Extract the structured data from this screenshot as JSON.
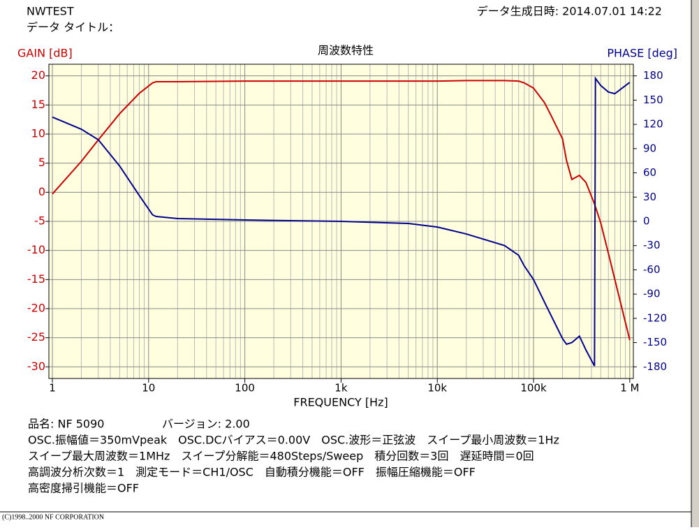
{
  "header": {
    "name": "NWTEST",
    "data_title": "データ タイトル：",
    "date": "データ生成日時: 2014.07.01 14:22"
  },
  "chart_data": {
    "type": "line",
    "title": "周波数特性",
    "x_label": "FREQUENCY [Hz]",
    "y_label": "GAIN [dB]",
    "y2_label": "PHASE [deg]",
    "x_log": true,
    "grid": true,
    "background": "#ffffe0",
    "xlim": [
      0.92,
      1090000
    ],
    "xticks": [
      1,
      10,
      100,
      {
        "value": 1000,
        "label": "1k"
      },
      {
        "value": 10000,
        "label": "10k"
      },
      {
        "value": 100000,
        "label": "100k"
      },
      {
        "value": 1000000,
        "label": "1 M"
      }
    ],
    "ylim": [
      -32,
      22
    ],
    "yticks": [
      20,
      15,
      10,
      5,
      0,
      -5,
      -10,
      -15,
      -20,
      -25,
      -30
    ],
    "y2lim": [
      -194.4,
      194.4
    ],
    "y2ticks": [
      180,
      150,
      120,
      90,
      60,
      30,
      0,
      -30,
      -60,
      -90,
      -120,
      -150,
      -180
    ],
    "x": [
      1,
      2,
      3,
      5,
      8,
      11,
      12,
      20,
      100,
      1000,
      5000,
      10000,
      20000,
      50000,
      70000,
      80000,
      100000,
      130000,
      150000,
      200000,
      220000,
      250000,
      300000,
      350000,
      430000,
      440000,
      500000,
      600000,
      700000,
      1000000
    ],
    "series": [
      {
        "name": "GAIN",
        "color": "#cc0000",
        "axis": "y",
        "values": [
          -0.3,
          5.3,
          9,
          13.5,
          17,
          18.8,
          19,
          19,
          19.1,
          19.1,
          19.1,
          19.1,
          19.2,
          19.2,
          19.1,
          18.8,
          17.9,
          15.4,
          13.4,
          9.2,
          5.5,
          2.2,
          2.9,
          1.7,
          -2,
          -2.5,
          -5.3,
          -10.5,
          -15,
          -25.4
        ]
      },
      {
        "name": "PHASE",
        "color": "#00008b",
        "axis": "y2",
        "values": [
          129,
          114,
          101,
          68.5,
          32,
          8,
          6,
          3.5,
          1.7,
          0,
          -2.6,
          -7,
          -15.6,
          -30,
          -42,
          -55,
          -72,
          -100,
          -115,
          -145,
          -152,
          -150,
          -142,
          -159,
          -179,
          177,
          168,
          160,
          158,
          172
        ]
      }
    ]
  },
  "info": {
    "product": "品名: NF 5090",
    "version": "バージョン: 2.00",
    "lines": [
      "OSC.振幅値＝350mVpeak　OSC.DCバイアス＝0.00V　OSC.波形＝正弦波　スイープ最小周波数＝1Hz",
      "スイープ最大周波数＝1MHz　スイープ分解能＝480Steps/Sweep　積分回数＝3回　遅延時間＝0回",
      "高調波分析次数＝1　測定モード＝CH1/OSC　自動積分機能＝OFF　振幅圧縮機能＝OFF",
      "高密度掃引機能＝OFF"
    ]
  },
  "footer": "(C)1998..2000 NF CORPORATION"
}
